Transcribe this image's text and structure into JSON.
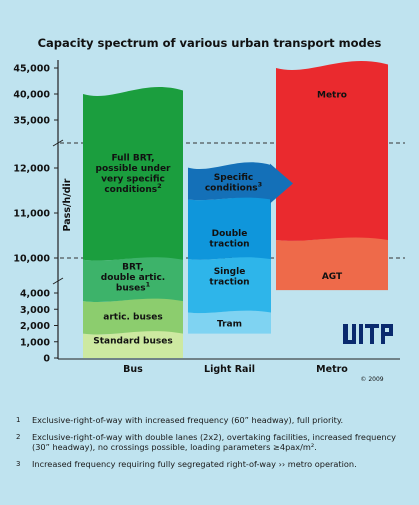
{
  "chart_data": {
    "type": "area",
    "title": "Capacity spectrum of various urban transport modes",
    "ylabel": "Pass/h/dir",
    "y_axis": {
      "scale": "broken",
      "ticks": [
        "0",
        "1,000",
        "2,000",
        "3,000",
        "4,000",
        "10,000",
        "11,000",
        "12,000",
        "35,000",
        "40,000",
        "45,000"
      ]
    },
    "categories": [
      "Bus",
      "Light Rail",
      "Metro"
    ],
    "bands": [
      {
        "mode": "Bus",
        "label": "Standard buses",
        "min": 0,
        "max": 1500,
        "color": "#cde9a1"
      },
      {
        "mode": "Bus",
        "label": "artic. buses",
        "min": 1500,
        "max": 3500,
        "color": "#8ccd6e"
      },
      {
        "mode": "Bus",
        "label": "BRT, double artic. buses",
        "footnote": "1",
        "min": 3500,
        "max": 9700,
        "color": "#3db36a"
      },
      {
        "mode": "Bus",
        "label": "Full BRT, possible under very specific conditions",
        "footnote": "2",
        "min": 9700,
        "max": 40000,
        "color": "#1b9e3e"
      },
      {
        "mode": "Light Rail",
        "label": "Tram",
        "min": 1500,
        "max": 2800,
        "color": "#7fd3f2"
      },
      {
        "mode": "Light Rail",
        "label": "Single traction",
        "min": 2800,
        "max": 9800,
        "color": "#2eb5ea"
      },
      {
        "mode": "Light Rail",
        "label": "Double traction",
        "min": 9800,
        "max": 11300,
        "color": "#0f96db"
      },
      {
        "mode": "Light Rail",
        "label": "Specific conditions",
        "footnote": "3",
        "min": 11300,
        "max": 12200,
        "color": "#1470b8"
      },
      {
        "mode": "Metro",
        "label": "AGT",
        "min": 4500,
        "max": 10400,
        "color": "#ee6a4a"
      },
      {
        "mode": "Metro",
        "label": "Metro",
        "min": 10400,
        "max": 45000,
        "color": "#ea2a2e"
      }
    ],
    "logo": "UITP",
    "copyright": "© 2009"
  },
  "footnotes": [
    {
      "mark": "1",
      "text": "Exclusive-right-of-way with increased frequency (60” headway), full priority."
    },
    {
      "mark": "2",
      "text": "Exclusive-right-of-way with double lanes (2x2), overtaking facilities, increased frequency (30” headway), no crossings possible, loading parameters ≥4pax/m²."
    },
    {
      "mark": "3",
      "text": "Increased frequency requiring fully segregated right-of-way ›› metro operation."
    }
  ],
  "colors": {
    "background": "#bfe3ef",
    "logo": "#0a2a6e"
  }
}
